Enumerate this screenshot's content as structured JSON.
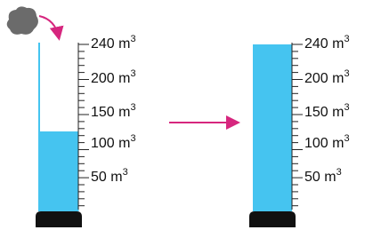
{
  "cylinders": [
    {
      "scale": [
        {
          "text": "240 m",
          "sup": "3"
        },
        {
          "text": "200 m",
          "sup": "3"
        },
        {
          "text": "150 m",
          "sup": "3"
        },
        {
          "text": "100 m",
          "sup": "3"
        },
        {
          "text": "50 m",
          "sup": "3"
        }
      ]
    },
    {
      "scale": [
        {
          "text": "240 m",
          "sup": "3"
        },
        {
          "text": "200 m",
          "sup": "3"
        },
        {
          "text": "150 m",
          "sup": "3"
        },
        {
          "text": "100 m",
          "sup": "3"
        },
        {
          "text": "50 m",
          "sup": "3"
        }
      ]
    }
  ]
}
